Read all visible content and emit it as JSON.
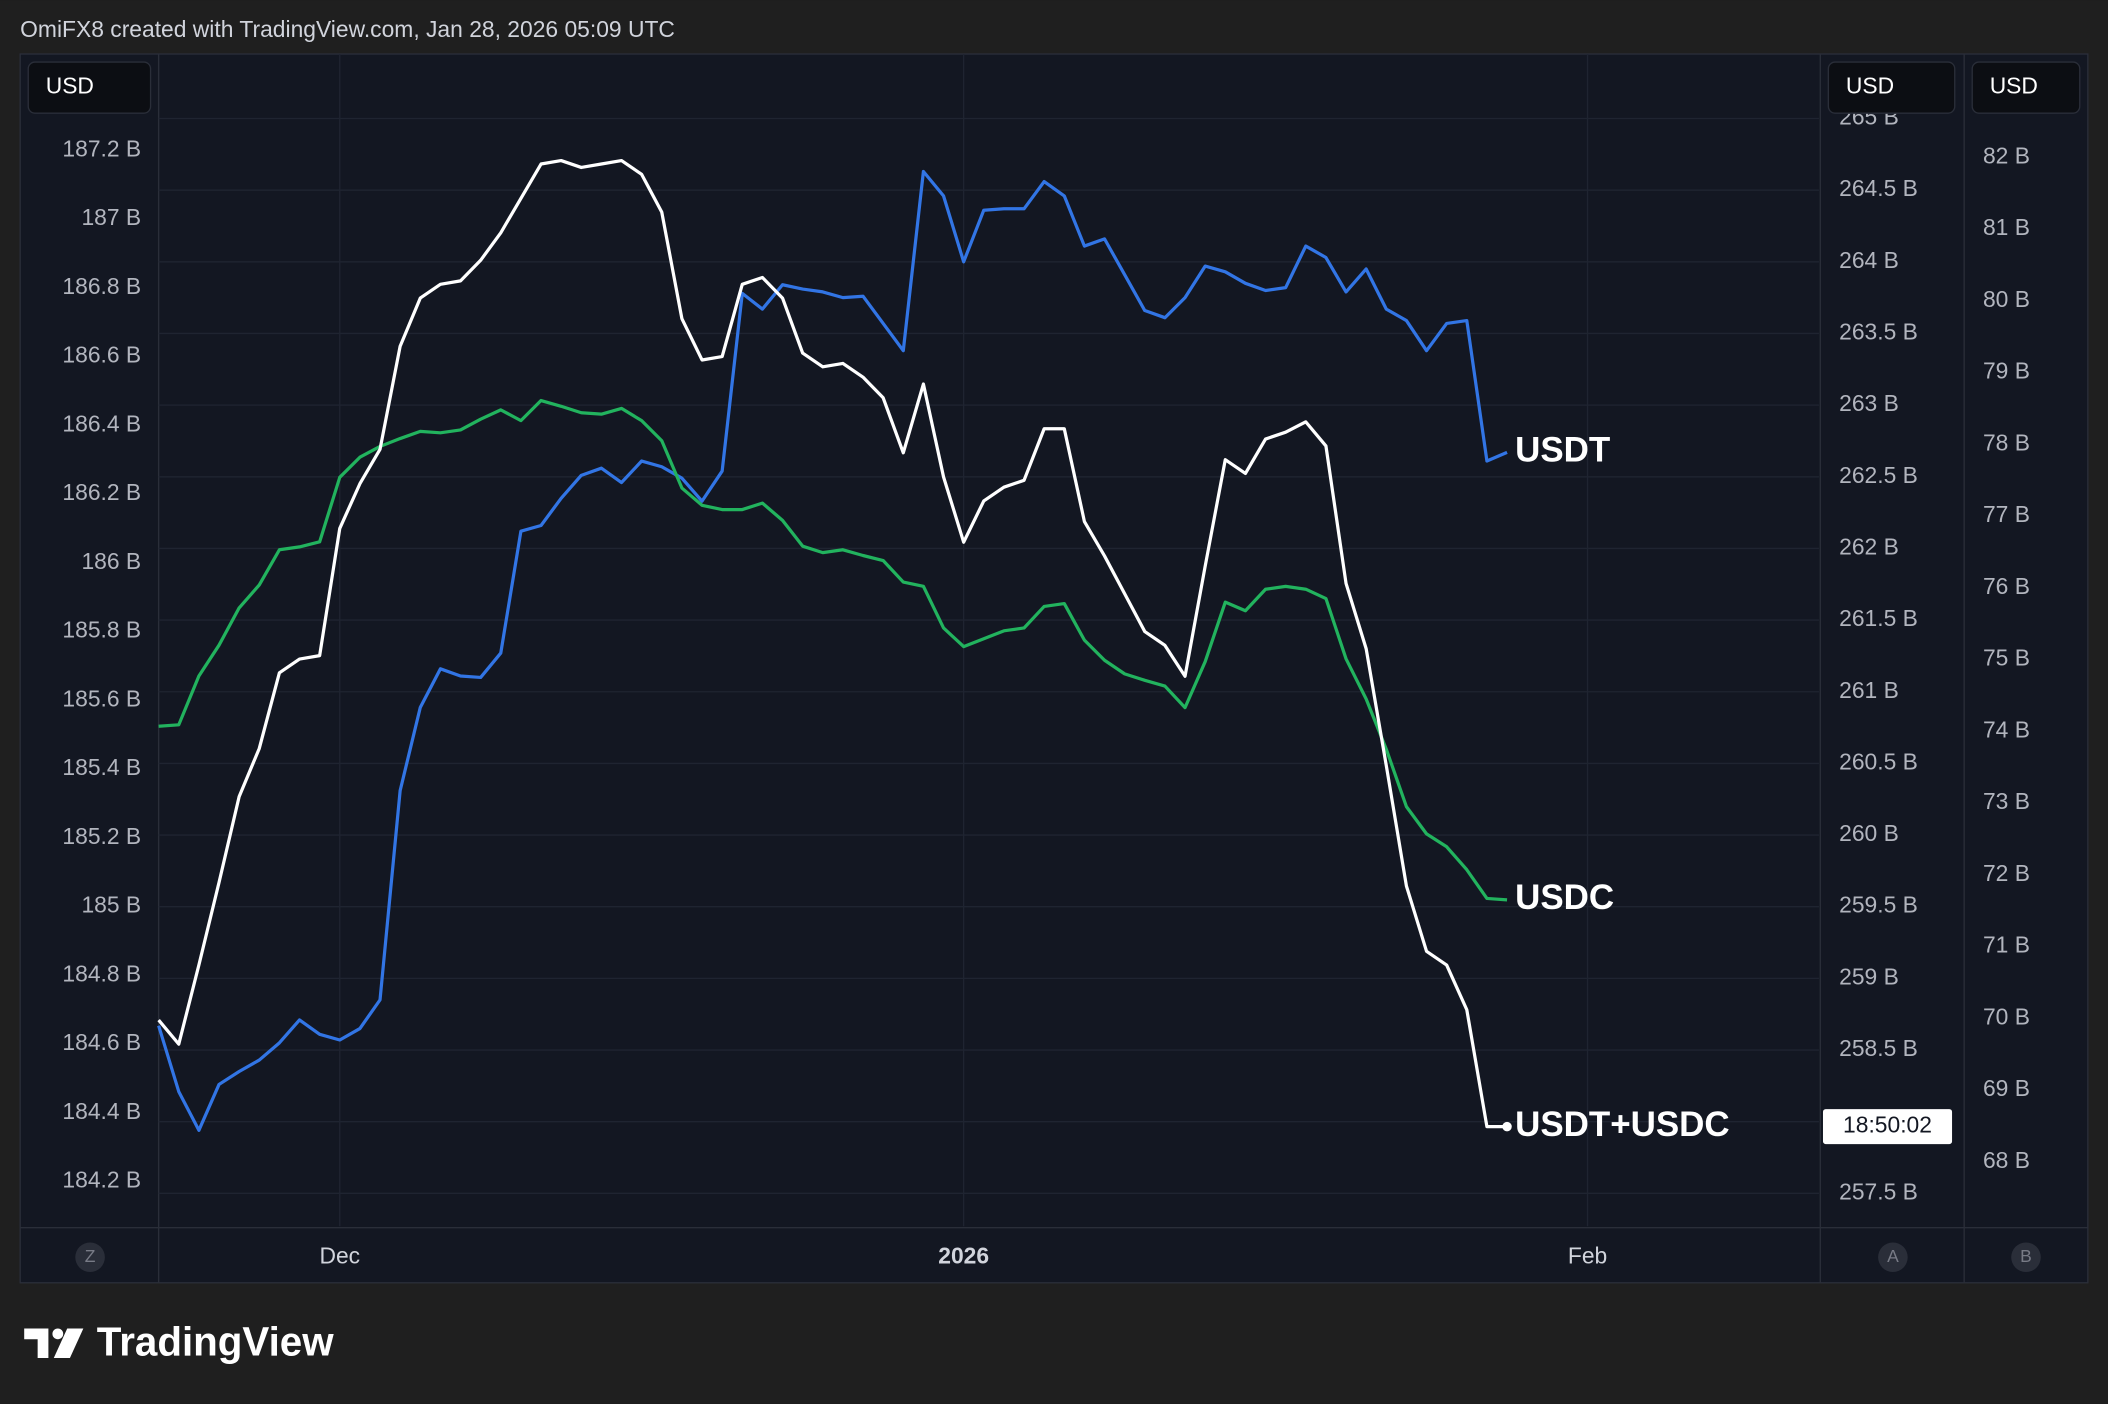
{
  "header": "OmiFX8 created with TradingView.com, Jan 28, 2026 05:09 UTC",
  "brand": "TradingView",
  "chart_data": {
    "type": "line",
    "currency_labels": [
      "USD",
      "USD",
      "USD"
    ],
    "scale_buttons": [
      "Z",
      "A",
      "B"
    ],
    "countdown": "18:50:02",
    "grid": true,
    "grid_axis": "y2",
    "categories": [
      null,
      null,
      null,
      null,
      null,
      null,
      null,
      null,
      null,
      "Dec",
      null,
      null,
      null,
      null,
      null,
      null,
      null,
      null,
      null,
      null,
      null,
      null,
      null,
      null,
      null,
      null,
      null,
      null,
      null,
      null,
      null,
      null,
      null,
      null,
      null,
      null,
      null,
      null,
      null,
      null,
      "2026",
      null,
      null,
      null,
      null,
      null,
      null,
      null,
      null,
      null,
      null,
      null,
      null,
      null,
      null,
      null,
      null,
      null,
      null,
      null,
      null,
      null,
      null,
      null,
      null,
      null,
      null,
      null,
      null,
      null,
      null,
      "Feb",
      null,
      null,
      null,
      null,
      null,
      null,
      null,
      null,
      null,
      null,
      null
    ],
    "ylim": [
      184.07,
      187.48
    ],
    "yticks": [
      {
        "value": 184.2,
        "label": "184.2 B"
      },
      {
        "value": 184.4,
        "label": "184.4 B"
      },
      {
        "value": 184.6,
        "label": "184.6 B"
      },
      {
        "value": 184.8,
        "label": "184.8 B"
      },
      {
        "value": 185,
        "label": "185 B"
      },
      {
        "value": 185.2,
        "label": "185.2 B"
      },
      {
        "value": 185.4,
        "label": "185.4 B"
      },
      {
        "value": 185.6,
        "label": "185.6 B"
      },
      {
        "value": 185.8,
        "label": "185.8 B"
      },
      {
        "value": 186,
        "label": "186 B"
      },
      {
        "value": 186.2,
        "label": "186.2 B"
      },
      {
        "value": 186.4,
        "label": "186.4 B"
      },
      {
        "value": 186.6,
        "label": "186.6 B"
      },
      {
        "value": 186.8,
        "label": "186.8 B"
      },
      {
        "value": 187,
        "label": "187 B"
      },
      {
        "value": 187.2,
        "label": "187.2 B"
      }
    ],
    "y2lim": [
      257.27,
      265.45
    ],
    "y2ticks": [
      {
        "value": 257.5,
        "label": "257.5 B"
      },
      {
        "value": 258,
        "label": "258 B"
      },
      {
        "value": 258.5,
        "label": "258.5 B"
      },
      {
        "value": 259,
        "label": "259 B"
      },
      {
        "value": 259.5,
        "label": "259.5 B"
      },
      {
        "value": 260,
        "label": "260 B"
      },
      {
        "value": 260.5,
        "label": "260.5 B"
      },
      {
        "value": 261,
        "label": "261 B"
      },
      {
        "value": 261.5,
        "label": "261.5 B"
      },
      {
        "value": 262,
        "label": "262 B"
      },
      {
        "value": 262.5,
        "label": "262.5 B"
      },
      {
        "value": 263,
        "label": "263 B"
      },
      {
        "value": 263.5,
        "label": "263.5 B"
      },
      {
        "value": 264,
        "label": "264 B"
      },
      {
        "value": 264.5,
        "label": "264.5 B"
      },
      {
        "value": 265,
        "label": "265 B"
      }
    ],
    "y3lim": [
      67.1,
      83.44
    ],
    "y3ticks": [
      {
        "value": 68,
        "label": "68 B"
      },
      {
        "value": 69,
        "label": "69 B"
      },
      {
        "value": 70,
        "label": "70 B"
      },
      {
        "value": 71,
        "label": "71 B"
      },
      {
        "value": 72,
        "label": "72 B"
      },
      {
        "value": 73,
        "label": "73 B"
      },
      {
        "value": 74,
        "label": "74 B"
      },
      {
        "value": 75,
        "label": "75 B"
      },
      {
        "value": 76,
        "label": "76 B"
      },
      {
        "value": 77,
        "label": "77 B"
      },
      {
        "value": 78,
        "label": "78 B"
      },
      {
        "value": 79,
        "label": "79 B"
      },
      {
        "value": 80,
        "label": "80 B"
      },
      {
        "value": 81,
        "label": "81 B"
      },
      {
        "value": 82,
        "label": "82 B"
      }
    ],
    "series": [
      {
        "name": "USDT",
        "color": "#3275e5",
        "axis": "y2",
        "values": [
          258.67,
          258.21,
          257.94,
          258.26,
          258.35,
          258.43,
          258.55,
          258.71,
          258.61,
          258.57,
          258.65,
          258.85,
          260.31,
          260.89,
          261.16,
          261.11,
          261.1,
          261.27,
          262.12,
          262.16,
          262.35,
          262.51,
          262.56,
          262.46,
          262.61,
          262.57,
          262.49,
          262.33,
          262.54,
          263.78,
          263.67,
          263.84,
          263.81,
          263.79,
          263.75,
          263.76,
          263.57,
          263.38,
          264.63,
          264.46,
          264.0,
          264.36,
          264.37,
          264.37,
          264.56,
          264.46,
          264.11,
          264.16,
          263.91,
          263.66,
          263.61,
          263.75,
          263.97,
          263.93,
          263.85,
          263.8,
          263.82,
          264.11,
          264.03,
          263.79,
          263.95,
          263.67,
          263.59,
          263.38,
          263.57,
          263.59,
          262.61,
          262.67,
          null,
          null,
          null,
          null,
          null,
          null,
          null,
          null,
          null,
          null,
          null,
          null,
          null,
          null,
          null
        ]
      },
      {
        "name": "USDC",
        "color": "#22b35e",
        "axis": "y3",
        "values": [
          74.07,
          74.09,
          74.77,
          75.2,
          75.72,
          76.04,
          76.53,
          76.57,
          76.64,
          77.54,
          77.82,
          77.97,
          78.08,
          78.18,
          78.16,
          78.2,
          78.35,
          78.48,
          78.33,
          78.61,
          78.53,
          78.44,
          78.42,
          78.5,
          78.33,
          78.05,
          77.39,
          77.15,
          77.09,
          77.09,
          77.18,
          76.94,
          76.58,
          76.49,
          76.53,
          76.45,
          76.38,
          76.08,
          76.02,
          75.44,
          75.18,
          75.29,
          75.4,
          75.44,
          75.74,
          75.78,
          75.27,
          74.99,
          74.8,
          74.71,
          74.63,
          74.33,
          74.97,
          75.8,
          75.68,
          75.98,
          76.02,
          75.98,
          75.85,
          75.01,
          74.45,
          73.75,
          72.95,
          72.57,
          72.39,
          72.07,
          71.67,
          71.65,
          null,
          null,
          null,
          null,
          null,
          null,
          null,
          null,
          null,
          null,
          null,
          null,
          null,
          null,
          null
        ]
      },
      {
        "name": "USDT+USDC",
        "color": "#ffffff",
        "axis": "y",
        "values": [
          184.67,
          184.6,
          184.83,
          185.07,
          185.32,
          185.46,
          185.68,
          185.72,
          185.73,
          186.1,
          186.23,
          186.33,
          186.63,
          186.77,
          186.81,
          186.82,
          186.88,
          186.96,
          187.06,
          187.16,
          187.17,
          187.15,
          187.16,
          187.17,
          187.13,
          187.02,
          186.71,
          186.59,
          186.6,
          186.81,
          186.83,
          186.77,
          186.61,
          186.57,
          186.58,
          186.54,
          186.48,
          186.32,
          186.52,
          186.25,
          186.06,
          186.18,
          186.22,
          186.24,
          186.39,
          186.39,
          186.12,
          186.02,
          185.91,
          185.8,
          185.76,
          185.67,
          185.99,
          186.3,
          186.26,
          186.36,
          186.38,
          186.41,
          186.34,
          185.94,
          185.75,
          185.41,
          185.06,
          184.87,
          184.83,
          184.7,
          184.36,
          184.36,
          null,
          null,
          null,
          null,
          null,
          null,
          null,
          null,
          null,
          null,
          null,
          null,
          null,
          null,
          null
        ]
      }
    ]
  }
}
